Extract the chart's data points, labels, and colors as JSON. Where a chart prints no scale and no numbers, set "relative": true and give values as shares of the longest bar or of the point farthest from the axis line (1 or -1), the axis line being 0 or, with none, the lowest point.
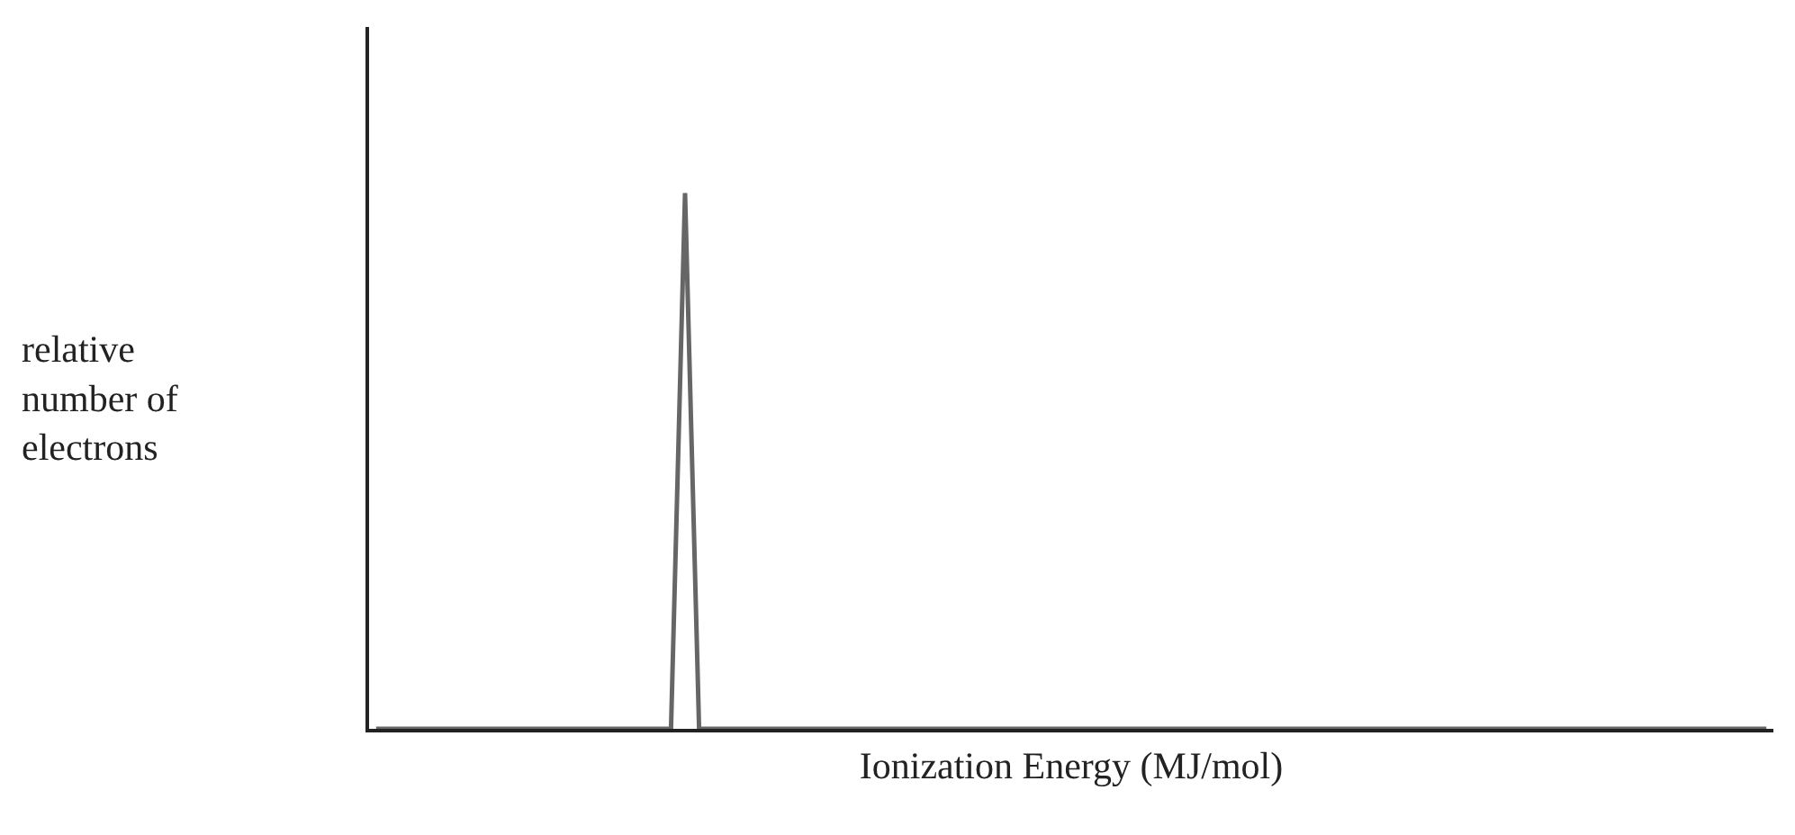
{
  "chart_data": {
    "type": "line",
    "relative": true,
    "xlabel": "Ionization Energy (MJ/mol)",
    "ylabel": "relative\nnumber of\nelectrons",
    "categories": [
      null,
      null,
      null,
      null,
      null,
      null,
      null,
      null,
      null,
      null,
      null,
      null,
      null,
      null,
      null,
      null,
      null,
      null,
      null,
      null,
      null,
      null,
      null,
      null,
      null,
      null,
      null,
      null,
      null,
      null,
      null,
      null,
      null,
      null,
      null,
      null,
      null,
      null,
      null,
      null,
      null,
      null,
      null,
      null,
      null,
      null,
      null,
      null,
      null,
      null,
      null,
      null,
      null,
      null,
      null,
      null,
      null,
      null,
      null,
      null,
      null,
      null,
      null,
      null,
      null,
      null,
      null,
      null,
      null,
      null,
      null,
      null,
      null,
      null,
      null,
      null,
      null,
      null,
      null,
      null,
      null,
      null,
      null,
      null,
      null,
      null,
      null,
      null,
      null,
      null,
      null,
      null,
      null,
      null,
      null,
      null,
      null,
      null,
      null,
      null
    ],
    "values": [
      0,
      0,
      0,
      0,
      0,
      0,
      0,
      0,
      0,
      0,
      0,
      0,
      0,
      0,
      0,
      0,
      0,
      0,
      0,
      0,
      0,
      0,
      1,
      0,
      0,
      0,
      0,
      0,
      0,
      0,
      0,
      0,
      0,
      0,
      0,
      0,
      0,
      0,
      0,
      0,
      0,
      0,
      0,
      0,
      0,
      0,
      0,
      0,
      0,
      0,
      0,
      0,
      0,
      0,
      0,
      0,
      0,
      0,
      0,
      0,
      0,
      0,
      0,
      0,
      0,
      0,
      0,
      0,
      0,
      0,
      0,
      0,
      0,
      0,
      0,
      0,
      0,
      0,
      0,
      0,
      0,
      0,
      0,
      0,
      0,
      0,
      0,
      0,
      0,
      0,
      0,
      0,
      0,
      0,
      0,
      0,
      0,
      0,
      0,
      0
    ],
    "color": "#666666",
    "legend": false,
    "tick_labels": false
  }
}
